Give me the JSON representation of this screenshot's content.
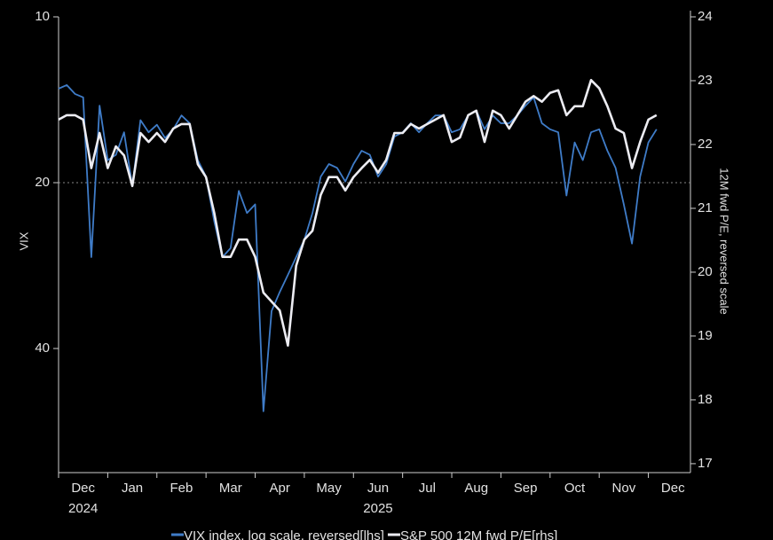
{
  "chart_data": {
    "type": "line",
    "y_label": "VIX",
    "y2_label": "12M fwd P/E, reversed scale",
    "categories": [
      null,
      null,
      null,
      "Dec",
      null,
      null,
      null,
      null,
      null,
      "Jan",
      null,
      null,
      null,
      null,
      null,
      "Feb",
      null,
      null,
      null,
      null,
      null,
      "Mar",
      null,
      null,
      null,
      null,
      null,
      "Apr",
      null,
      null,
      null,
      null,
      null,
      "May",
      null,
      null,
      null,
      null,
      null,
      "Jun",
      null,
      null,
      null,
      null,
      null,
      "Jul",
      null,
      null,
      null,
      null,
      null,
      "Aug",
      null,
      null,
      null,
      null,
      null,
      "Sep",
      null,
      null,
      null,
      null,
      null,
      "Oct",
      null,
      null,
      null,
      null,
      null,
      "Nov",
      null,
      null,
      null,
      null,
      null,
      "Dec"
    ],
    "category_years": [
      null,
      null,
      null,
      "2024",
      null,
      null,
      null,
      null,
      null,
      null,
      null,
      null,
      null,
      null,
      null,
      null,
      null,
      null,
      null,
      null,
      null,
      null,
      null,
      null,
      null,
      null,
      null,
      null,
      null,
      null,
      null,
      null,
      null,
      null,
      null,
      null,
      null,
      null,
      null,
      "2025",
      null,
      null,
      null,
      null,
      null,
      null,
      null,
      null,
      null,
      null,
      null,
      null,
      null,
      null,
      null,
      null,
      null,
      null,
      null,
      null,
      null,
      null,
      null,
      null,
      null,
      null,
      null,
      null,
      null,
      null,
      null,
      null,
      null,
      null,
      null,
      null
    ],
    "series": [
      {
        "name": "VIX index, log scale, reversed[lhs]",
        "color": "#3f7cc8",
        "axis": "y",
        "values": [
          13.5,
          13.3,
          13.8,
          14.0,
          27.3,
          14.5,
          18.2,
          17.8,
          16.2,
          20.3,
          15.4,
          16.2,
          15.7,
          16.6,
          16.0,
          15.1,
          15.6,
          18.2,
          19.5,
          23.5,
          27.3,
          26.3,
          20.7,
          22.7,
          21.9,
          52.0,
          34.2,
          31.6,
          29.4,
          27.3,
          25.4,
          22.7,
          19.5,
          18.5,
          18.8,
          19.9,
          18.5,
          17.5,
          17.8,
          19.5,
          18.5,
          16.5,
          16.2,
          15.6,
          16.2,
          15.6,
          15.1,
          15.1,
          16.2,
          16.0,
          15.1,
          14.8,
          16.0,
          15.1,
          15.6,
          15.6,
          15.1,
          14.5,
          14.0,
          15.6,
          16.0,
          16.2,
          21.1,
          16.9,
          18.2,
          16.2,
          16.0,
          17.5,
          18.8,
          21.9,
          25.8,
          19.5,
          16.9,
          16.0,
          null,
          null
        ]
      },
      {
        "name": "S&P 500 12M fwd P/E[rhs]",
        "color": "#ececf2",
        "axis": "y2",
        "values": [
          22.39,
          22.46,
          22.46,
          22.39,
          21.63,
          22.18,
          21.63,
          21.97,
          21.83,
          21.35,
          22.18,
          22.04,
          22.18,
          22.04,
          22.25,
          22.32,
          22.32,
          21.69,
          21.49,
          20.93,
          20.24,
          20.24,
          20.51,
          20.51,
          20.24,
          19.68,
          19.54,
          19.4,
          18.85,
          20.1,
          20.51,
          20.65,
          21.21,
          21.49,
          21.49,
          21.28,
          21.49,
          21.63,
          21.76,
          21.56,
          21.76,
          22.18,
          22.18,
          22.32,
          22.25,
          22.32,
          22.39,
          22.46,
          22.04,
          22.11,
          22.46,
          22.53,
          22.04,
          22.53,
          22.46,
          22.25,
          22.46,
          22.67,
          22.76,
          22.67,
          22.81,
          22.85,
          22.46,
          22.6,
          22.6,
          23.01,
          22.88,
          22.6,
          22.25,
          22.18,
          21.63,
          22.04,
          22.39,
          22.46,
          null,
          null
        ]
      }
    ],
    "ylim": [
      10,
      67.2
    ],
    "yticks": [
      10,
      20,
      40
    ],
    "log_y": true,
    "y_reversed": true,
    "y2lim": [
      16.86,
      24
    ],
    "y2ticks": [
      17,
      18,
      19,
      20,
      21,
      22,
      23,
      24
    ],
    "reference_line": 20,
    "legend": "bottom"
  }
}
